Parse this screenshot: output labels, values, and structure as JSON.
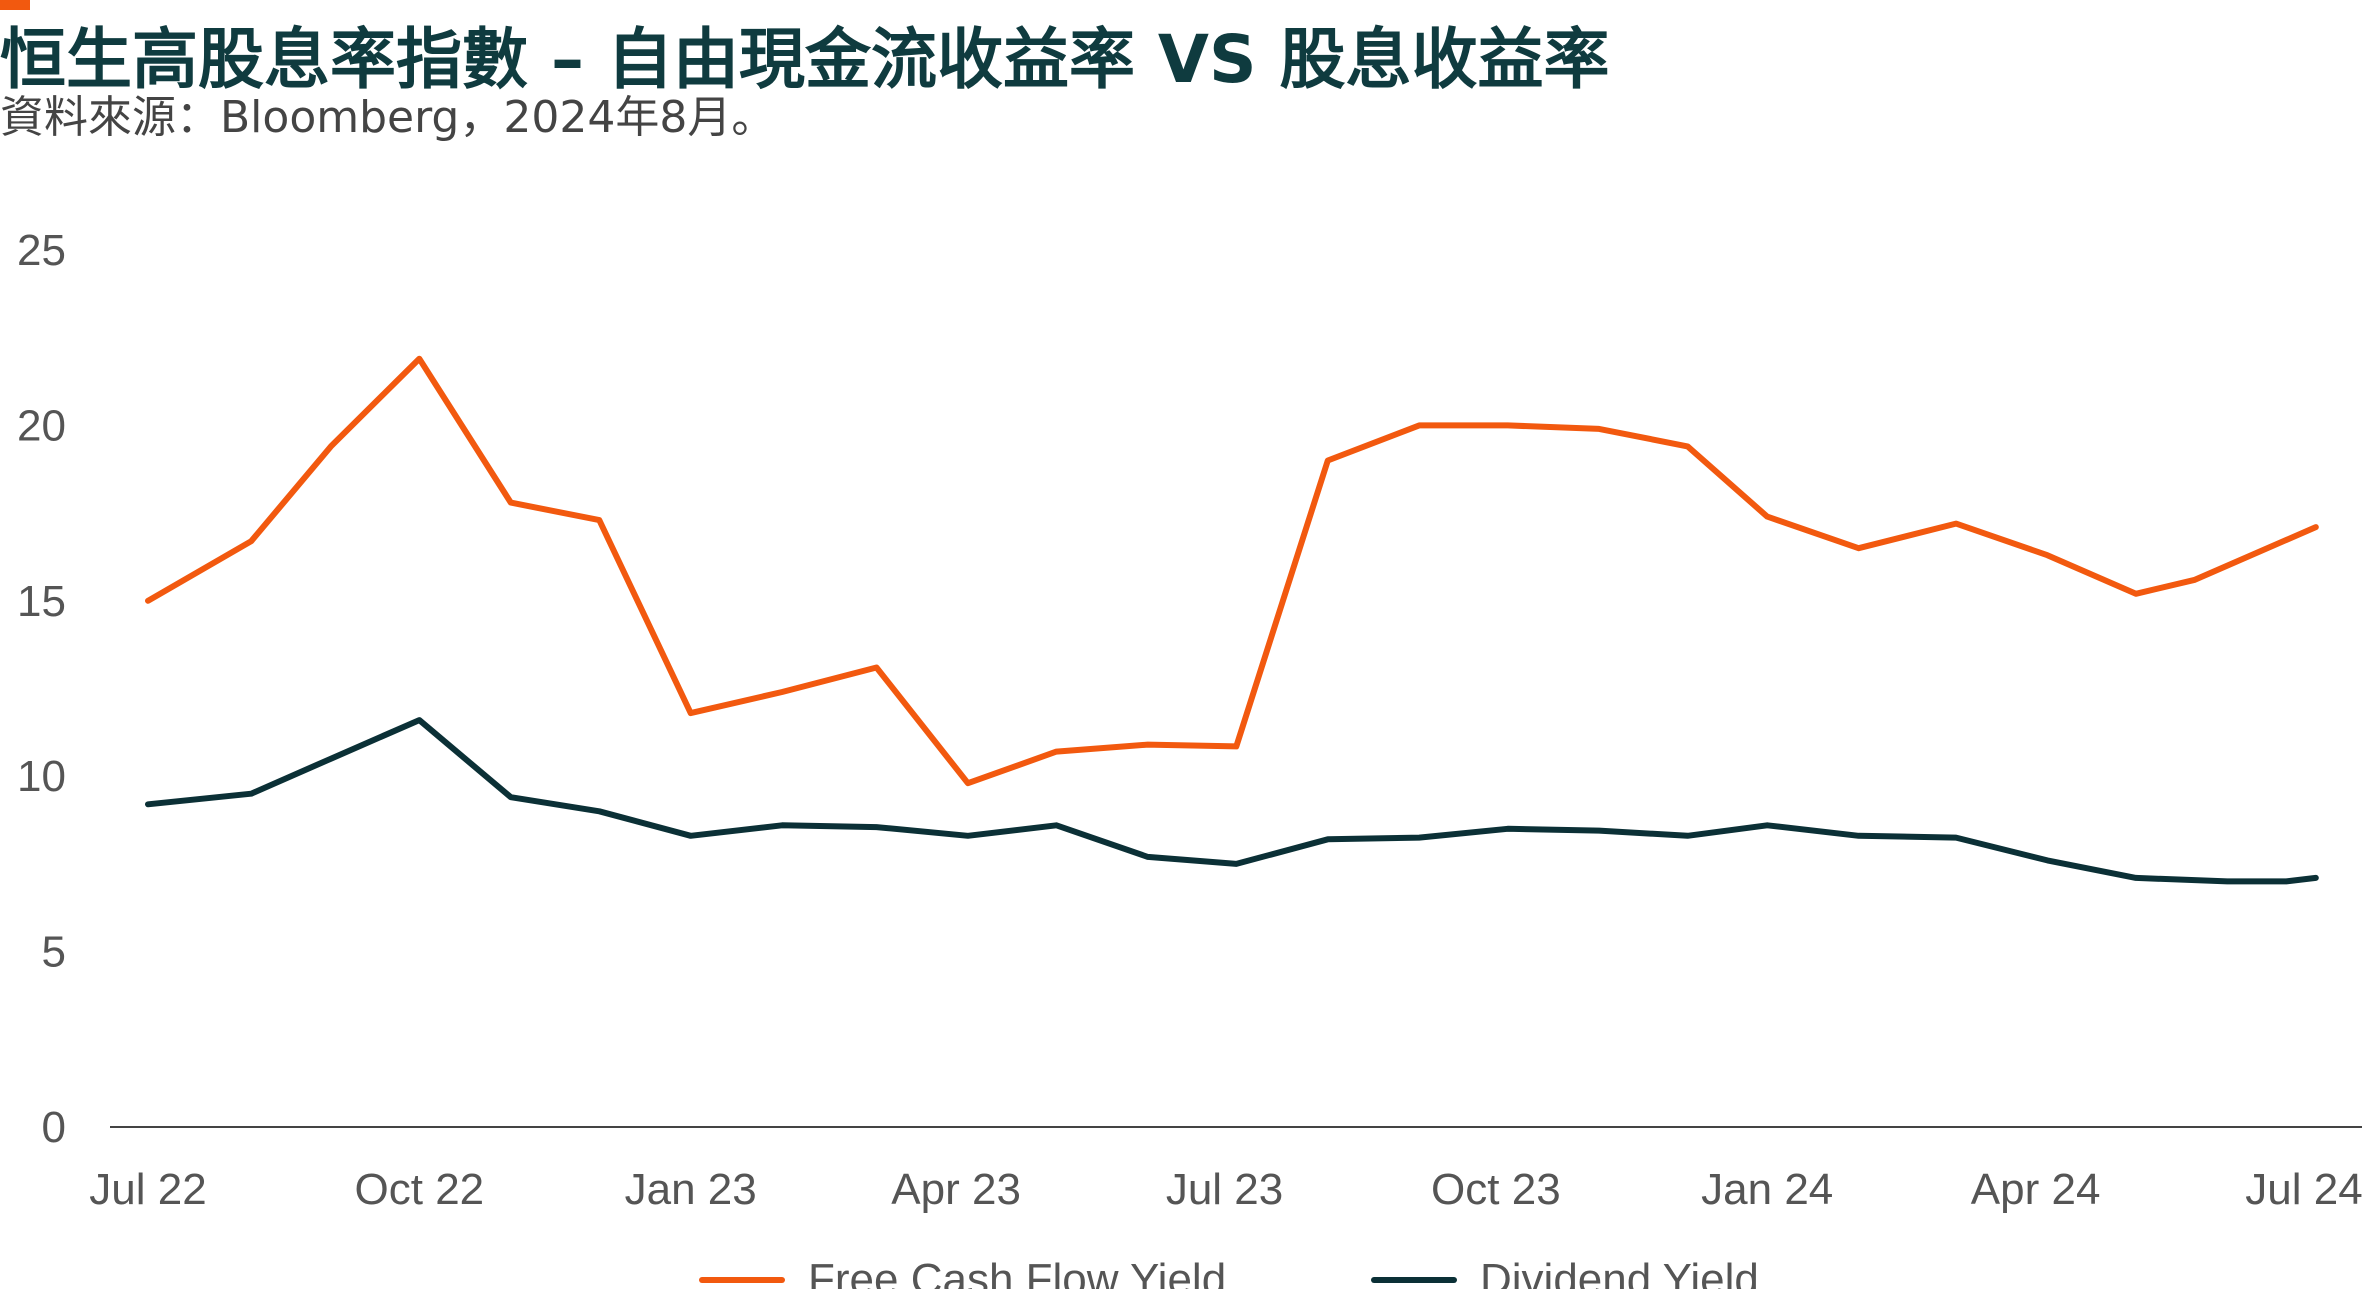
{
  "colors": {
    "accent": "#f2590f",
    "title": "#0f3b3f",
    "free_cash_flow": "#f2590f",
    "dividend": "#0b3036",
    "axis": "#444444"
  },
  "header": {
    "title": "恒生高股息率指數 – 自由現金流收益率 VS 股息收益率",
    "subtitle": "資料來源：Bloomberg，2024年8月。"
  },
  "chart_data": {
    "type": "line",
    "title": "恒生高股息率指數 – 自由現金流收益率 VS 股息收益率",
    "xlabel": "",
    "ylabel": "",
    "x": [
      "2022-07",
      "2022-08",
      "2022-09",
      "2022-10",
      "2022-11",
      "2022-12",
      "2023-01",
      "2023-02",
      "2023-03",
      "2023-04",
      "2023-05",
      "2023-06",
      "2023-07",
      "2023-08",
      "2023-09",
      "2023-10",
      "2023-11",
      "2023-12",
      "2024-01",
      "2024-02",
      "2024-03",
      "2024-04",
      "2024-05",
      "2024-06",
      "2024-07"
    ],
    "x_tick_labels": [
      "Jul 22",
      "Oct 22",
      "Jan 23",
      "Apr 23",
      "Jul 23",
      "Oct 23",
      "Jan 24",
      "Apr 24",
      "Jul 24"
    ],
    "y_ticks": [
      0,
      5,
      10,
      15,
      20,
      25
    ],
    "ylim": [
      0,
      25
    ],
    "grid": false,
    "legend_position": "bottom-center",
    "series": [
      {
        "name": "Free Cash Flow Yield",
        "points": [
          [
            "2022-07-01",
            15.0
          ],
          [
            "2022-08-05",
            16.7
          ],
          [
            "2022-09-01",
            19.4
          ],
          [
            "2022-10-01",
            21.9
          ],
          [
            "2022-11-01",
            17.8
          ],
          [
            "2022-12-01",
            17.3
          ],
          [
            "2023-01-01",
            11.8
          ],
          [
            "2023-02-01",
            12.4
          ],
          [
            "2023-03-05",
            13.1
          ],
          [
            "2023-04-05",
            9.8
          ],
          [
            "2023-05-05",
            10.7
          ],
          [
            "2023-06-05",
            10.9
          ],
          [
            "2023-07-05",
            10.85
          ],
          [
            "2023-08-05",
            19.0
          ],
          [
            "2023-09-05",
            20.0
          ],
          [
            "2023-10-05",
            20.0
          ],
          [
            "2023-11-05",
            19.9
          ],
          [
            "2023-12-05",
            19.4
          ],
          [
            "2024-01-01",
            17.4
          ],
          [
            "2024-02-01",
            16.5
          ],
          [
            "2024-03-05",
            17.2
          ],
          [
            "2024-04-05",
            16.3
          ],
          [
            "2024-05-05",
            15.2
          ],
          [
            "2024-05-25",
            15.6
          ],
          [
            "2024-07-05",
            17.1
          ]
        ]
      },
      {
        "name": "Dividend Yield",
        "points": [
          [
            "2022-07-01",
            9.2
          ],
          [
            "2022-08-05",
            9.5
          ],
          [
            "2022-09-01",
            10.5
          ],
          [
            "2022-10-01",
            11.6
          ],
          [
            "2022-11-01",
            9.4
          ],
          [
            "2022-12-01",
            9.0
          ],
          [
            "2023-01-01",
            8.3
          ],
          [
            "2023-02-01",
            8.6
          ],
          [
            "2023-03-05",
            8.55
          ],
          [
            "2023-04-05",
            8.3
          ],
          [
            "2023-05-05",
            8.6
          ],
          [
            "2023-06-05",
            7.7
          ],
          [
            "2023-07-05",
            7.5
          ],
          [
            "2023-08-05",
            8.2
          ],
          [
            "2023-09-05",
            8.25
          ],
          [
            "2023-10-05",
            8.5
          ],
          [
            "2023-11-05",
            8.45
          ],
          [
            "2023-12-05",
            8.3
          ],
          [
            "2024-01-01",
            8.6
          ],
          [
            "2024-02-01",
            8.3
          ],
          [
            "2024-03-05",
            8.25
          ],
          [
            "2024-04-05",
            7.6
          ],
          [
            "2024-05-05",
            7.1
          ],
          [
            "2024-06-05",
            7.0
          ],
          [
            "2024-06-25",
            7.0
          ],
          [
            "2024-07-05",
            7.1
          ]
        ]
      }
    ]
  }
}
